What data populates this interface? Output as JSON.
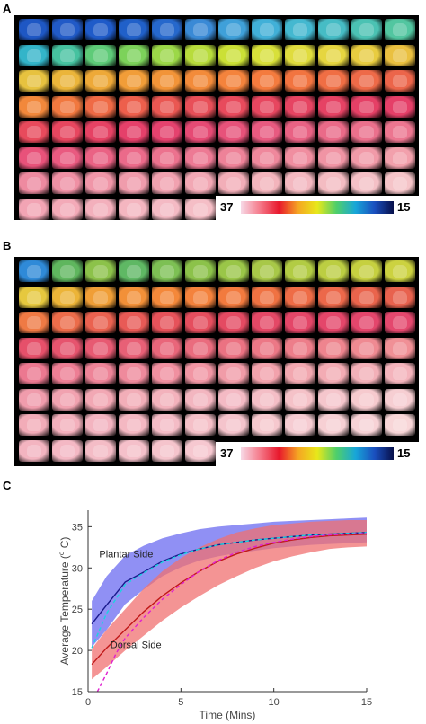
{
  "panels": {
    "a": {
      "label": "A",
      "colorbar": {
        "min_label": "37",
        "max_label": "15"
      }
    },
    "b": {
      "label": "B",
      "colorbar": {
        "min_label": "37",
        "max_label": "15"
      }
    },
    "c": {
      "label": "C"
    }
  },
  "colorscale": [
    "#f7d9e6",
    "#f57a8a",
    "#e8182c",
    "#f5a623",
    "#e8e81a",
    "#4fcf6a",
    "#18a6d8",
    "#1a4fbf",
    "#07104a"
  ],
  "panel_a_rows": [
    [
      "#1e57c4",
      "#215ac7",
      "#1f5bc9",
      "#2060c9",
      "#2668cc",
      "#3a8ad6",
      "#3fa0d9",
      "#41b0d8",
      "#44b8d0",
      "#46bcc5",
      "#4bc2b3",
      "#52c6a0"
    ],
    [
      "#33b4c9",
      "#46c2a0",
      "#5ecb78",
      "#7cd25a",
      "#9cd848",
      "#b8dc3c",
      "#cbe036",
      "#d8e03a",
      "#e0dc3e",
      "#e6d640",
      "#e8cc40",
      "#eac040"
    ],
    [
      "#e7c23f",
      "#ebb53a",
      "#eea938",
      "#f19d38",
      "#f29438",
      "#f38b3a",
      "#f4833c",
      "#f47b3e",
      "#f27440",
      "#f06e44",
      "#ee6a48",
      "#ec654a"
    ],
    [
      "#f2883b",
      "#f1783f",
      "#ef6a45",
      "#ed5f4c",
      "#ea5752",
      "#e84f58",
      "#e84a5c",
      "#e7465f",
      "#e64462",
      "#e64264",
      "#e54066",
      "#e53f68"
    ],
    [
      "#e84a5c",
      "#e7465f",
      "#e64264",
      "#e5406a",
      "#e5426e",
      "#e64a74",
      "#e7527a",
      "#e85a80",
      "#e96284",
      "#ea6a88",
      "#eb708c",
      "#ec7690"
    ],
    [
      "#e8527a",
      "#e95a80",
      "#ea6284",
      "#eb6a8a",
      "#ec728e",
      "#ed7a94",
      "#ee8298",
      "#ef889c",
      "#f08ea0",
      "#f094a4",
      "#f19aa8",
      "#f2a0ac"
    ],
    [
      "#ee8aa0",
      "#ef90a4",
      "#f096a8",
      "#f09cac",
      "#f1a2b0",
      "#f2a8b4",
      "#f2aeb8",
      "#f3b4bc",
      "#f3b8c0",
      "#f4bcc2",
      "#f4c0c6",
      "#f5c4c8"
    ],
    [
      "#f2a4b4",
      "#f3aab8",
      "#f3b0bc",
      "#f4b6c0",
      "#f4bac4",
      "#f5bec6"
    ]
  ],
  "panel_b_rows": [
    [
      "#2f8ad8",
      "#5fb65e",
      "#8cc24a",
      "#5fb864",
      "#7dc054",
      "#8cc24a",
      "#9ac648",
      "#a8c848",
      "#b2cc44",
      "#bcce42",
      "#c6d040",
      "#ccd240"
    ],
    [
      "#e6c83e",
      "#ecb438",
      "#f09e36",
      "#f29038",
      "#f4883a",
      "#f4823c",
      "#f27a3e",
      "#f07242",
      "#ee6c46",
      "#ec684a",
      "#ea644c",
      "#e8624e"
    ],
    [
      "#ef7a44",
      "#ec6c4a",
      "#ea6250",
      "#e85a56",
      "#e6525a",
      "#e54e5e",
      "#e44a62",
      "#e44866",
      "#e44668",
      "#e4466a",
      "#e4466c",
      "#e4486e"
    ],
    [
      "#e6506a",
      "#e6546e",
      "#e75a72",
      "#e86076",
      "#e9667a",
      "#ea6c7e",
      "#eb7282",
      "#ec7886",
      "#ed7e8a",
      "#ee848e",
      "#ef8a92",
      "#f09096"
    ],
    [
      "#ec7890",
      "#ed7e94",
      "#ee8498",
      "#ef8a9c",
      "#f090a0",
      "#f196a4",
      "#f19ca8",
      "#f2a2ac",
      "#f2a8b0",
      "#f3acb4",
      "#f3b0b8",
      "#f4b4bc"
    ],
    [
      "#f09cac",
      "#f1a2b0",
      "#f2a8b4",
      "#f2aeb8",
      "#f3b2bc",
      "#f3b6c0",
      "#f4bac4",
      "#f4bec6",
      "#f5c2c8",
      "#f5c6cc",
      "#f6cace",
      "#f6ced2"
    ],
    [
      "#f2acb8",
      "#f3b0bc",
      "#f3b4c0",
      "#f4b8c2",
      "#f4bcc6",
      "#f5c0c8",
      "#f5c4cc",
      "#f6c8ce",
      "#f6ccd2",
      "#f7d0d4",
      "#f7d2d6",
      "#f8d6d8"
    ],
    [
      "#f3b4c0",
      "#f4b8c4",
      "#f4bcc6",
      "#f5c0ca",
      "#f5c4cc",
      "#f6c8d0"
    ]
  ],
  "chart_data": {
    "type": "line",
    "xlabel": "Time (Mins)",
    "ylabel": "Average Temperature (o C)",
    "xlim": [
      0,
      15
    ],
    "ylim": [
      15,
      37
    ],
    "xticks": [
      0,
      5,
      10,
      15
    ],
    "yticks": [
      15,
      20,
      25,
      30,
      35
    ],
    "grid": false,
    "annotations": [
      {
        "text": "Plantar Side",
        "x": 0.6,
        "y": 31.3
      },
      {
        "text": "Dorsal Side",
        "x": 1.2,
        "y": 20.3
      }
    ],
    "series": [
      {
        "color": "#1a1a8c",
        "band_color": "#6b6bf0",
        "style": "solid",
        "x": [
          0.2,
          1,
          2,
          3,
          4,
          5,
          6,
          7,
          8,
          9,
          10,
          11,
          12,
          13,
          14,
          15
        ],
        "y": [
          23.2,
          25.5,
          28.3,
          29.5,
          30.8,
          31.7,
          32.3,
          32.8,
          33.1,
          33.4,
          33.6,
          33.8,
          34,
          34.1,
          34.2,
          34.3
        ],
        "lower": [
          20.4,
          22.5,
          25.6,
          27.4,
          29,
          30.1,
          30.9,
          31.4,
          31.8,
          32.1,
          32.4,
          32.6,
          32.8,
          32.9,
          33,
          33.1
        ],
        "upper": [
          26,
          29,
          31.5,
          32.7,
          33.6,
          34.2,
          34.7,
          35,
          35.2,
          35.4,
          35.6,
          35.7,
          35.8,
          35.9,
          36,
          36.1
        ]
      },
      {
        "color": "#1ad4e0",
        "style": "dashed",
        "x": [
          0.2,
          1,
          2,
          3,
          4,
          5,
          6,
          7,
          8,
          9,
          10,
          11,
          12,
          13,
          14,
          15
        ],
        "y": [
          20.3,
          24.5,
          28,
          29.4,
          30.7,
          31.6,
          32.3,
          32.8,
          33.1,
          33.4,
          33.6,
          33.8,
          34,
          34.1,
          34.2,
          34.3
        ]
      },
      {
        "color": "#c01818",
        "band_color": "#f07070",
        "style": "solid",
        "x": [
          0.2,
          1,
          2,
          3,
          4,
          5,
          6,
          7,
          8,
          9,
          10,
          11,
          12,
          13,
          14,
          15
        ],
        "y": [
          18.3,
          20.3,
          22.5,
          24.7,
          26.6,
          28.2,
          29.6,
          30.8,
          31.7,
          32.4,
          33,
          33.4,
          33.7,
          33.9,
          34,
          34.1
        ],
        "lower": [
          16.5,
          18,
          20,
          21.8,
          23.6,
          25.2,
          26.6,
          27.9,
          29,
          30,
          30.8,
          31.4,
          31.9,
          32.3,
          32.5,
          32.6
        ],
        "upper": [
          20.2,
          22.5,
          25,
          27.5,
          29.6,
          31.2,
          32.5,
          33.5,
          34.3,
          34.8,
          35.2,
          35.4,
          35.6,
          35.7,
          35.8,
          35.8
        ]
      },
      {
        "color": "#e020d0",
        "style": "dashed",
        "x": [
          0.5,
          1,
          1.5,
          2,
          3,
          4,
          5,
          6,
          7,
          8,
          9,
          10,
          11,
          12,
          13,
          14,
          15
        ],
        "y": [
          15,
          17.2,
          19.6,
          21.5,
          24,
          26.2,
          28,
          29.6,
          30.9,
          31.9,
          32.6,
          33.1,
          33.5,
          33.8,
          34,
          34.1,
          34.2
        ]
      }
    ]
  }
}
